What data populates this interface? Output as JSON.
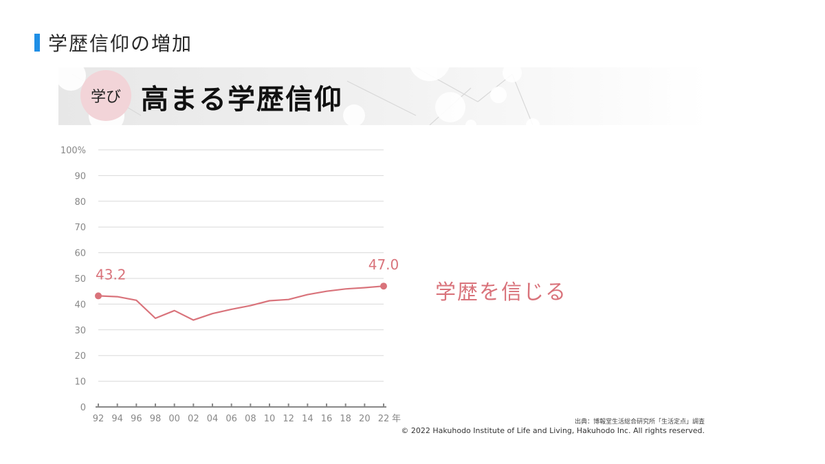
{
  "slide": {
    "title": "学歴信仰の増加",
    "accent_color": "#1f8fe6"
  },
  "banner": {
    "badge": "学び",
    "title": "高まる学歴信仰"
  },
  "side_label": "学歴を信じる",
  "source": "出典：博報堂生活総合研究所「生活定点」調査",
  "copyright": "© 2022 Hakuhodo Institute of Life and Living, Hakuhodo Inc. All rights reserved.",
  "chart_data": {
    "type": "line",
    "title": "",
    "xlabel": "",
    "ylabel": "",
    "x_unit": "年",
    "y_unit": "%",
    "ylim": [
      0,
      100
    ],
    "yticks": [
      0,
      10,
      20,
      30,
      40,
      50,
      60,
      70,
      80,
      90,
      100
    ],
    "grid": true,
    "line_color": "#d9737b",
    "categories": [
      "92",
      "94",
      "96",
      "98",
      "00",
      "02",
      "04",
      "06",
      "08",
      "10",
      "12",
      "14",
      "16",
      "18",
      "20",
      "22"
    ],
    "series": [
      {
        "values": [
          43.2,
          42.9,
          41.5,
          34.5,
          37.5,
          33.8,
          36.3,
          38.0,
          39.4,
          41.3,
          41.8,
          43.7,
          45.0,
          45.9,
          46.4,
          47.0
        ]
      }
    ],
    "annotations": [
      {
        "x": "92",
        "text": "43.2"
      },
      {
        "x": "22",
        "text": "47.0"
      }
    ]
  }
}
